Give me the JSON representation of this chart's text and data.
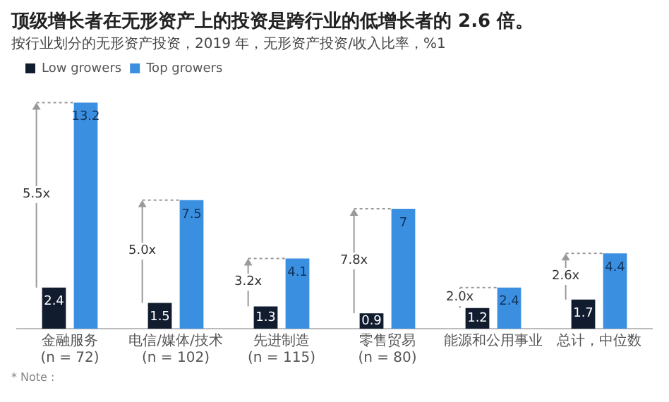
{
  "chart_data": {
    "type": "bar",
    "title": "顶级增长者在无形资产上的投资是跨行业的低增长者的 2.6 倍。",
    "subtitle": "按行业划分的无形资产投资，2019 年，无形资产投资/收入比率，%1",
    "categories": [
      "金融服务\n(n = 72)",
      "电信/媒体/技术\n(n = 102)",
      "先进制造\n(n = 115)",
      "零售贸易\n(n = 80)",
      "能源和公用事业",
      "总计，中位数"
    ],
    "series": [
      {
        "name": "Low growers",
        "color": "#111c2e",
        "values": [
          2.4,
          1.5,
          1.3,
          0.9,
          1.2,
          1.7
        ]
      },
      {
        "name": "Top growers",
        "color": "#3b8fe0",
        "values": [
          13.2,
          7.5,
          4.1,
          7,
          2.4,
          4.4
        ]
      }
    ],
    "data_labels": true,
    "legend": "top left",
    "grid": false,
    "annotations": [
      "5.5x",
      "5.0x",
      "3.2x",
      "7.8x",
      "2.0x",
      "2.6x",
      "* Note :"
    ]
  }
}
